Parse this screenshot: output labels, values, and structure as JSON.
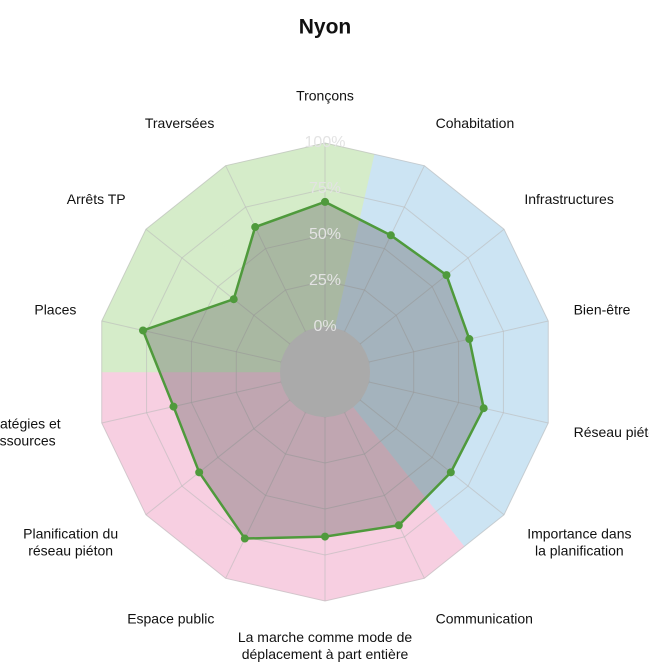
{
  "chart_data": {
    "type": "radar",
    "title": "Nyon",
    "categories": [
      [
        "Tronçons"
      ],
      [
        "Cohabitation"
      ],
      [
        "Infrastructures"
      ],
      [
        "Bien-être"
      ],
      [
        "Réseau piéton"
      ],
      [
        "Importance dans",
        "la planification"
      ],
      [
        "Communication"
      ],
      [
        "La marche comme mode de",
        "déplacement à part entière"
      ],
      [
        "Espace public"
      ],
      [
        "Planification du",
        "réseau piéton"
      ],
      [
        "Stratégies et",
        "ressources"
      ],
      [
        "Places"
      ],
      [
        "Arrêts TP"
      ],
      [
        "Traversées"
      ]
    ],
    "series": [
      {
        "color": "#4f9a3c",
        "values": [
          68,
          58,
          60,
          56,
          64,
          63,
          68,
          65,
          76,
          63,
          60,
          77,
          39,
          63
        ]
      }
    ],
    "background_colors": [
      "#d5ecc9",
      "#cce4f3",
      "#cce4f3",
      "#cce4f3",
      "#cce4f3",
      "#cce4f3",
      "#f7cfe1",
      "#f7cfe1",
      "#f7cfe1",
      "#f7cfe1",
      "#f7cfe1",
      "#d5ecc9",
      "#d5ecc9",
      "#d5ecc9"
    ],
    "rlim": [
      0,
      100
    ],
    "rticks": [
      {
        "value": 0,
        "label": "0%"
      },
      {
        "value": 25,
        "label": "25%"
      },
      {
        "value": 50,
        "label": "50%"
      },
      {
        "value": 75,
        "label": "75%"
      },
      {
        "value": 100,
        "label": "100%"
      }
    ],
    "grid": true
  }
}
